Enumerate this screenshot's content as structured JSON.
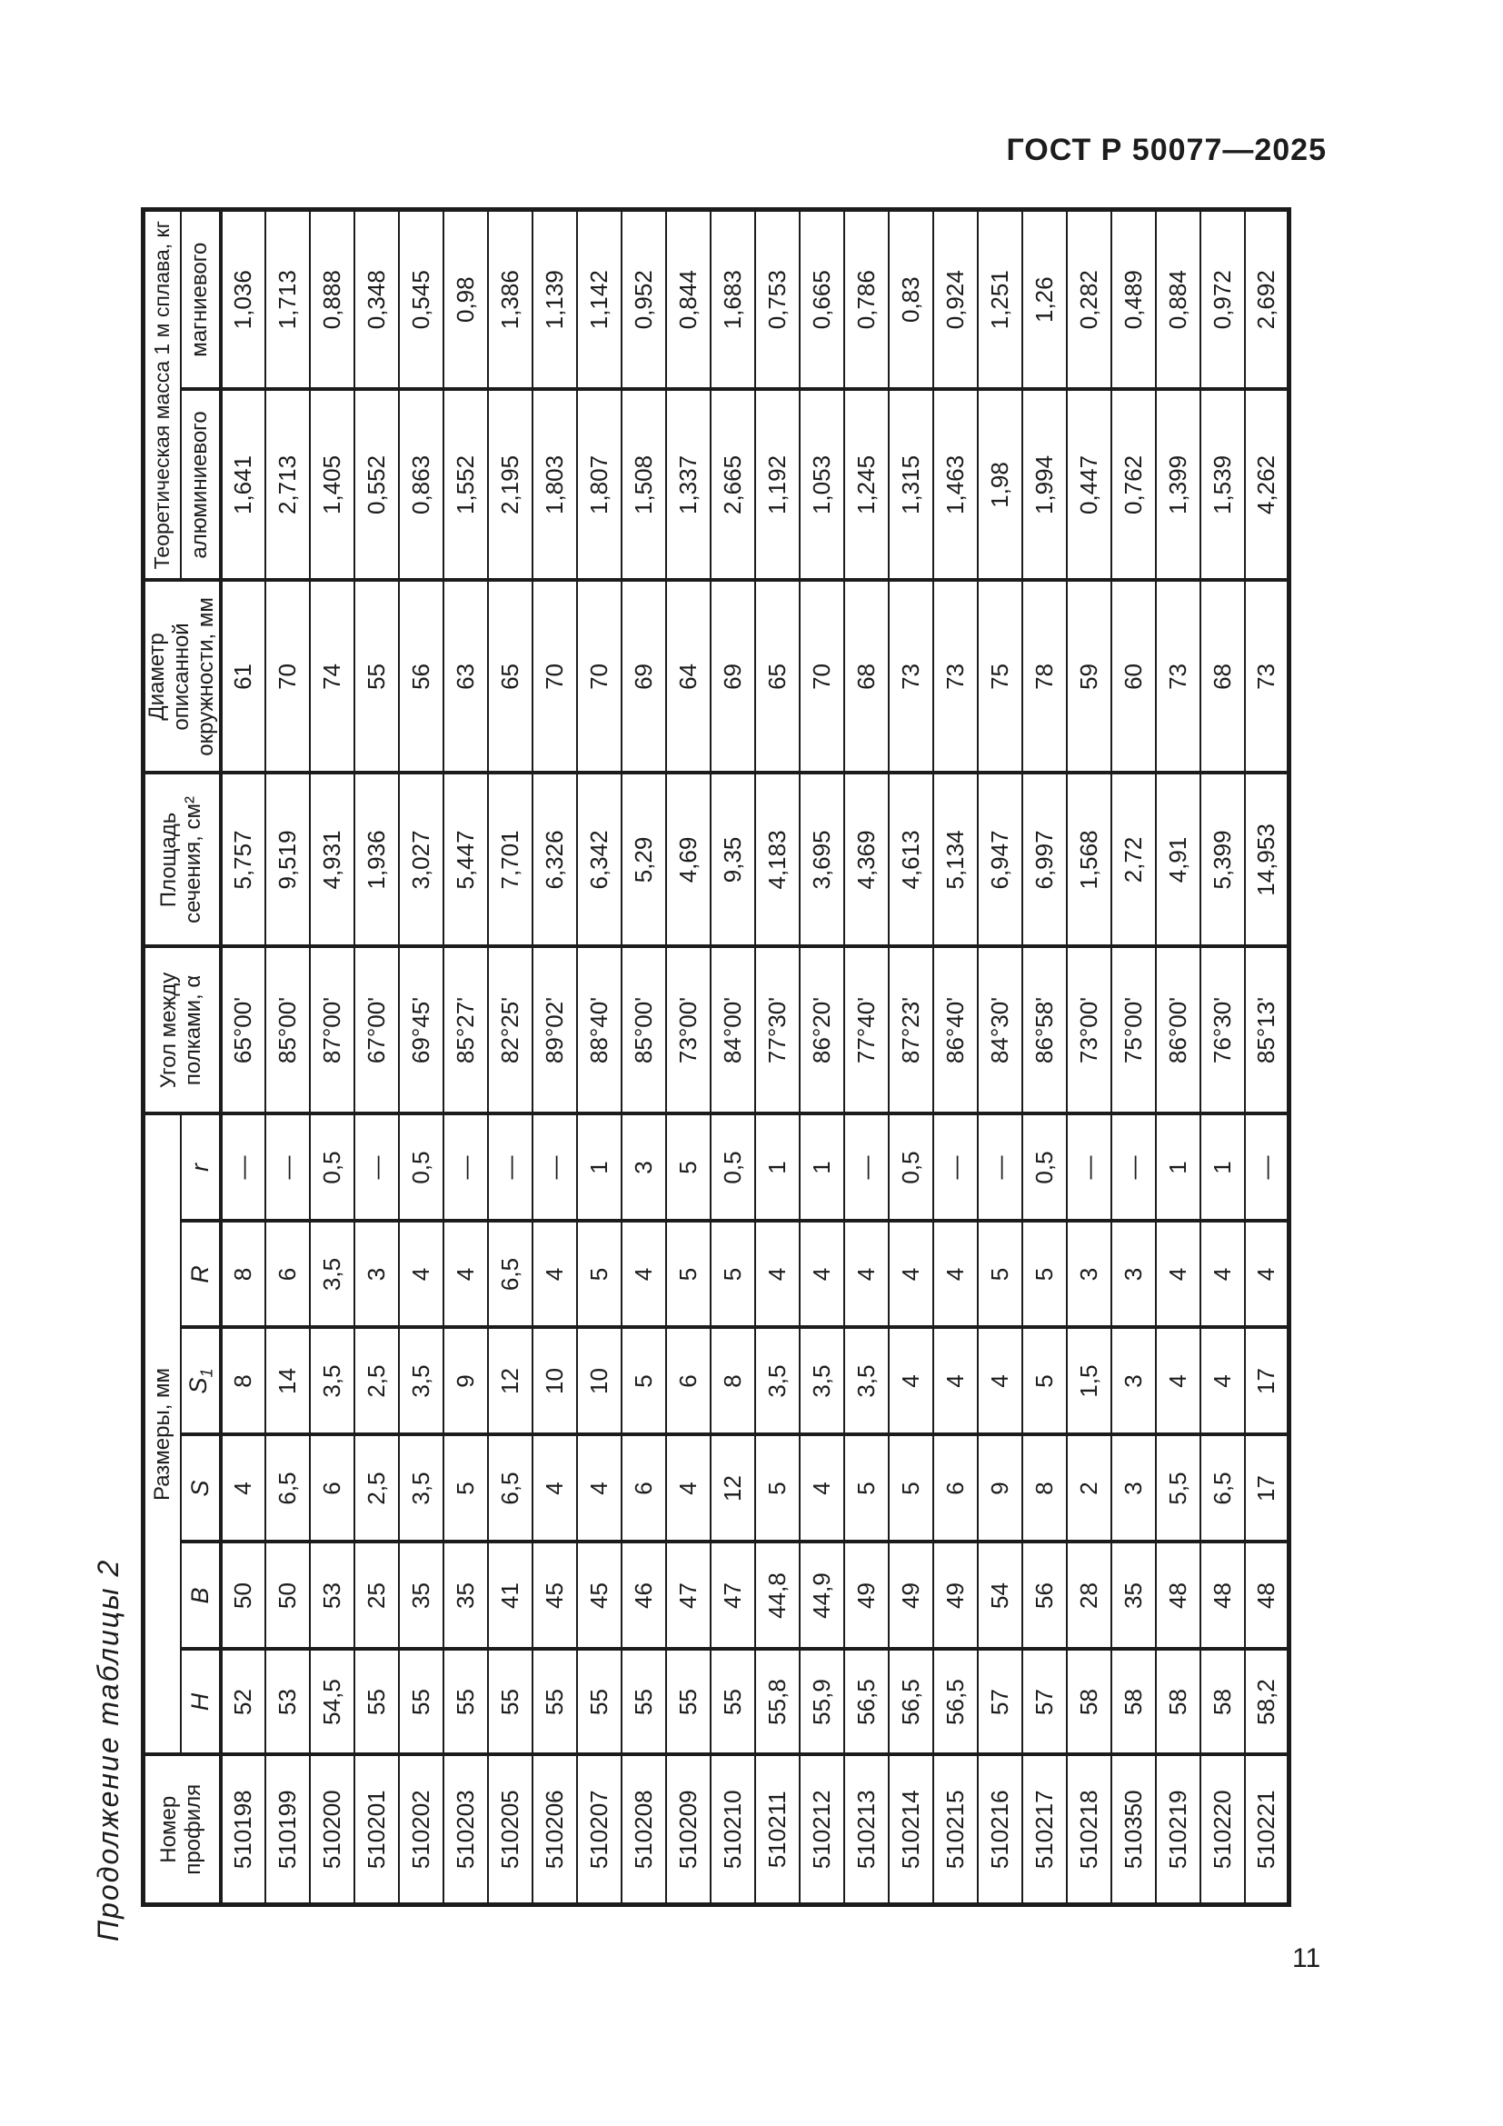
{
  "page": {
    "standard_ref": "ГОСТ Р 50077—2025",
    "page_number": "11",
    "table_title": "Продолжение таблицы 2",
    "ink_color": "#1c1c1c",
    "paper_color": "#ffffff"
  },
  "table": {
    "headers": {
      "profile": "Номер профиля",
      "dimensions_group": "Размеры, мм",
      "dim_h": "H",
      "dim_b": "B",
      "dim_s": "S",
      "dim_s1_base": "S",
      "dim_s1_sub": "1",
      "dim_r_big": "R",
      "dim_r_small": "r",
      "angle": "Угол между полками, α",
      "area": "Площадь сечения, см²",
      "diameter": "Диаметр описанной окружности, мм",
      "mass_group": "Теоретическая масса 1 м сплава, кг",
      "mass_aluminum": "алюминиевого",
      "mass_magnesium": "магниевого"
    },
    "columns_order": [
      "profile",
      "H",
      "B",
      "S",
      "S1",
      "R",
      "r",
      "angle_alpha",
      "section_area_cm2",
      "circumscribed_diameter_mm",
      "mass_aluminum_kg",
      "mass_magnesium_kg"
    ],
    "rows": [
      [
        "510198",
        "52",
        "50",
        "4",
        "8",
        "8",
        "—",
        "65°00'",
        "5,757",
        "61",
        "1,641",
        "1,036"
      ],
      [
        "510199",
        "53",
        "50",
        "6,5",
        "14",
        "6",
        "—",
        "85°00'",
        "9,519",
        "70",
        "2,713",
        "1,713"
      ],
      [
        "510200",
        "54,5",
        "53",
        "6",
        "3,5",
        "3,5",
        "0,5",
        "87°00'",
        "4,931",
        "74",
        "1,405",
        "0,888"
      ],
      [
        "510201",
        "55",
        "25",
        "2,5",
        "2,5",
        "3",
        "—",
        "67°00'",
        "1,936",
        "55",
        "0,552",
        "0,348"
      ],
      [
        "510202",
        "55",
        "35",
        "3,5",
        "3,5",
        "4",
        "0,5",
        "69°45'",
        "3,027",
        "56",
        "0,863",
        "0,545"
      ],
      [
        "510203",
        "55",
        "35",
        "5",
        "9",
        "4",
        "—",
        "85°27'",
        "5,447",
        "63",
        "1,552",
        "0,98"
      ],
      [
        "510205",
        "55",
        "41",
        "6,5",
        "12",
        "6,5",
        "—",
        "82°25'",
        "7,701",
        "65",
        "2,195",
        "1,386"
      ],
      [
        "510206",
        "55",
        "45",
        "4",
        "10",
        "4",
        "—",
        "89°02'",
        "6,326",
        "70",
        "1,803",
        "1,139"
      ],
      [
        "510207",
        "55",
        "45",
        "4",
        "10",
        "5",
        "1",
        "88°40'",
        "6,342",
        "70",
        "1,807",
        "1,142"
      ],
      [
        "510208",
        "55",
        "46",
        "6",
        "5",
        "4",
        "3",
        "85°00'",
        "5,29",
        "69",
        "1,508",
        "0,952"
      ],
      [
        "510209",
        "55",
        "47",
        "4",
        "6",
        "5",
        "5",
        "73°00'",
        "4,69",
        "64",
        "1,337",
        "0,844"
      ],
      [
        "510210",
        "55",
        "47",
        "12",
        "8",
        "5",
        "0,5",
        "84°00'",
        "9,35",
        "69",
        "2,665",
        "1,683"
      ],
      [
        "510211",
        "55,8",
        "44,8",
        "5",
        "3,5",
        "4",
        "1",
        "77°30'",
        "4,183",
        "65",
        "1,192",
        "0,753"
      ],
      [
        "510212",
        "55,9",
        "44,9",
        "4",
        "3,5",
        "4",
        "1",
        "86°20'",
        "3,695",
        "70",
        "1,053",
        "0,665"
      ],
      [
        "510213",
        "56,5",
        "49",
        "5",
        "3,5",
        "4",
        "—",
        "77°40'",
        "4,369",
        "68",
        "1,245",
        "0,786"
      ],
      [
        "510214",
        "56,5",
        "49",
        "5",
        "4",
        "4",
        "0,5",
        "87°23'",
        "4,613",
        "73",
        "1,315",
        "0,83"
      ],
      [
        "510215",
        "56,5",
        "49",
        "6",
        "4",
        "4",
        "—",
        "86°40'",
        "5,134",
        "73",
        "1,463",
        "0,924"
      ],
      [
        "510216",
        "57",
        "54",
        "9",
        "4",
        "5",
        "—",
        "84°30'",
        "6,947",
        "75",
        "1,98",
        "1,251"
      ],
      [
        "510217",
        "57",
        "56",
        "8",
        "5",
        "5",
        "0,5",
        "86°58'",
        "6,997",
        "78",
        "1,994",
        "1,26"
      ],
      [
        "510218",
        "58",
        "28",
        "2",
        "1,5",
        "3",
        "—",
        "73°00'",
        "1,568",
        "59",
        "0,447",
        "0,282"
      ],
      [
        "510350",
        "58",
        "35",
        "3",
        "3",
        "3",
        "—",
        "75°00'",
        "2,72",
        "60",
        "0,762",
        "0,489"
      ],
      [
        "510219",
        "58",
        "48",
        "5,5",
        "4",
        "4",
        "1",
        "86°00'",
        "4,91",
        "73",
        "1,399",
        "0,884"
      ],
      [
        "510220",
        "58",
        "48",
        "6,5",
        "4",
        "4",
        "1",
        "76°30'",
        "5,399",
        "68",
        "1,539",
        "0,972"
      ],
      [
        "510221",
        "58,2",
        "48",
        "17",
        "17",
        "4",
        "—",
        "85°13'",
        "14,953",
        "73",
        "4,262",
        "2,692"
      ]
    ]
  }
}
